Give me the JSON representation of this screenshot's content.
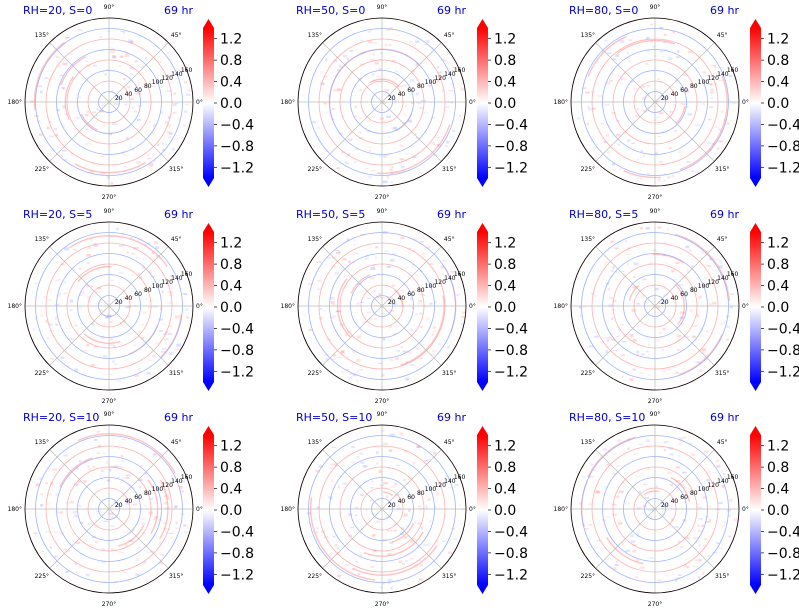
{
  "figure": {
    "time_label": "69 hr",
    "title_color": "#0000cc"
  },
  "chart_data": [
    {
      "type": "heatmap",
      "title": "RH=20, S=0",
      "time": "69 hr",
      "projection": "polar",
      "rh": 20,
      "s": 0
    },
    {
      "type": "heatmap",
      "title": "RH=50, S=0",
      "time": "69 hr",
      "projection": "polar",
      "rh": 50,
      "s": 0
    },
    {
      "type": "heatmap",
      "title": "RH=80, S=0",
      "time": "69 hr",
      "projection": "polar",
      "rh": 80,
      "s": 0
    },
    {
      "type": "heatmap",
      "title": "RH=20, S=5",
      "time": "69 hr",
      "projection": "polar",
      "rh": 20,
      "s": 5
    },
    {
      "type": "heatmap",
      "title": "RH=50, S=5",
      "time": "69 hr",
      "projection": "polar",
      "rh": 50,
      "s": 5
    },
    {
      "type": "heatmap",
      "title": "RH=80, S=5",
      "time": "69 hr",
      "projection": "polar",
      "rh": 80,
      "s": 5
    },
    {
      "type": "heatmap",
      "title": "RH=20, S=10",
      "time": "69 hr",
      "projection": "polar",
      "rh": 20,
      "s": 10
    },
    {
      "type": "heatmap",
      "title": "RH=50, S=10",
      "time": "69 hr",
      "projection": "polar",
      "rh": 50,
      "s": 10
    },
    {
      "type": "heatmap",
      "title": "RH=80, S=10",
      "time": "69 hr",
      "projection": "polar",
      "rh": 80,
      "s": 10
    }
  ],
  "polar_axes": {
    "angle_ticks": [
      0,
      45,
      90,
      135,
      180,
      225,
      270,
      315
    ],
    "angle_labels": [
      "0°",
      "45°",
      "90°",
      "135°",
      "180°",
      "225°",
      "270°",
      "315°"
    ],
    "radial_ticks": [
      20,
      40,
      60,
      80,
      100,
      120,
      140,
      160
    ],
    "radial_labels": [
      "20",
      "40",
      "60",
      "80",
      "100",
      "120",
      "140",
      "160"
    ],
    "rmax": 160,
    "grid": true
  },
  "colorbar": {
    "cmap": "bwr",
    "vmin": -1.4,
    "vmax": 1.4,
    "extend": "both",
    "tick_values": [
      1.2,
      0.8,
      0.4,
      0.0,
      -0.4,
      -0.8,
      -1.2
    ],
    "tick_labels": [
      "1.2",
      "0.8",
      "0.4",
      "0.0",
      "−0.4",
      "−0.8",
      "−1.2"
    ],
    "low_color": "#0000ff",
    "high_color": "#ff0000"
  },
  "colors": {
    "neg_circle": "#9db3ff",
    "pos_circle": "#ffb0b0",
    "spoke": "#bbbbbb",
    "frame": "#000000"
  }
}
